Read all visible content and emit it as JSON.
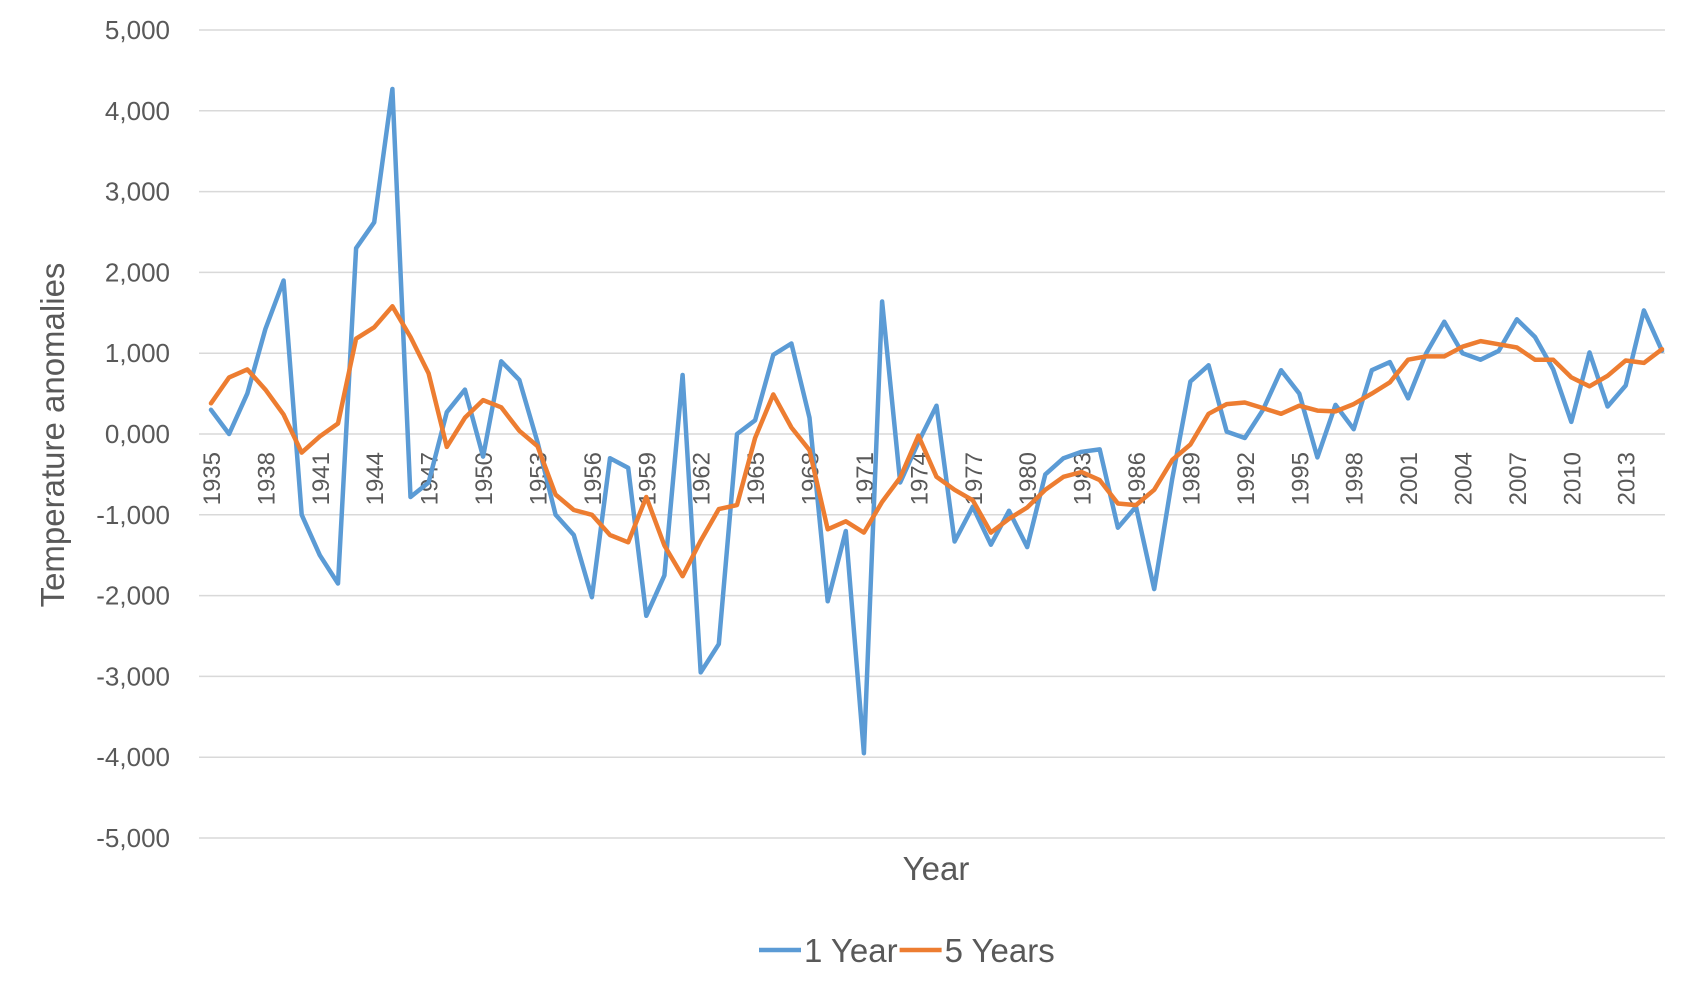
{
  "chart_data": {
    "type": "line",
    "title": "",
    "xlabel": "Year",
    "ylabel": "Temperature anomalies",
    "ylim": [
      -5000,
      5000
    ],
    "y_ticks": [
      5000,
      4000,
      3000,
      2000,
      1000,
      0,
      -1000,
      -2000,
      -3000,
      -4000,
      -5000
    ],
    "y_tick_labels": [
      "5,000",
      "4,000",
      "3,000",
      "2,000",
      "1,000",
      "0,000",
      "-1,000",
      "-2,000",
      "-3,000",
      "-4,000",
      "-5,000"
    ],
    "x_tick_labels": [
      "1935",
      "1938",
      "1941",
      "1944",
      "1947",
      "1950",
      "1953",
      "1956",
      "1959",
      "1962",
      "1965",
      "1968",
      "1971",
      "1974",
      "1977",
      "1980",
      "1983",
      "1986",
      "1989",
      "1992",
      "1995",
      "1998",
      "2001",
      "2004",
      "2007",
      "2010",
      "2013"
    ],
    "x_axis_position": 0,
    "grid": true,
    "legend_position": "bottom",
    "x": [
      1935,
      1936,
      1937,
      1938,
      1939,
      1940,
      1941,
      1942,
      1943,
      1944,
      1945,
      1946,
      1947,
      1948,
      1949,
      1950,
      1951,
      1952,
      1953,
      1954,
      1955,
      1956,
      1957,
      1958,
      1959,
      1960,
      1961,
      1962,
      1963,
      1964,
      1965,
      1966,
      1967,
      1968,
      1969,
      1970,
      1971,
      1972,
      1973,
      1974,
      1975,
      1976,
      1977,
      1978,
      1979,
      1980,
      1981,
      1982,
      1983,
      1984,
      1985,
      1986,
      1987,
      1988,
      1989,
      1990,
      1991,
      1992,
      1993,
      1994,
      1995,
      1996,
      1997,
      1998,
      1999,
      2000,
      2001,
      2002,
      2003,
      2004,
      2005,
      2006,
      2007,
      2008,
      2009,
      2010,
      2011,
      2012,
      2013,
      2014,
      2015
    ],
    "series": [
      {
        "name": "1 Year",
        "color": "#5b9bd5",
        "values": [
          300,
          0,
          500,
          1300,
          1900,
          -1000,
          -1500,
          -1850,
          2300,
          2620,
          4270,
          -780,
          -600,
          270,
          550,
          -280,
          900,
          670,
          -100,
          -1000,
          -1250,
          -2020,
          -300,
          -420,
          -2250,
          -1750,
          730,
          -2950,
          -2600,
          0,
          170,
          980,
          1120,
          200,
          -2070,
          -1200,
          -3950,
          1640,
          -600,
          -100,
          350,
          -1330,
          -900,
          -1370,
          -950,
          -1400,
          -500,
          -300,
          -220,
          -190,
          -1160,
          -900,
          -1920,
          -550,
          650,
          850,
          30,
          -50,
          300,
          790,
          500,
          -290,
          360,
          60,
          790,
          890,
          440,
          1000,
          1390,
          1000,
          920,
          1030,
          1420,
          1200,
          800,
          150,
          1010,
          340,
          600,
          1530,
          1030
        ]
      },
      {
        "name": "5 Years",
        "color": "#ed7d31",
        "values": [
          380,
          700,
          800,
          550,
          240,
          -230,
          -30,
          130,
          1180,
          1320,
          1580,
          1200,
          750,
          -160,
          200,
          420,
          330,
          40,
          -150,
          -750,
          -940,
          -1000,
          -1250,
          -1340,
          -780,
          -1380,
          -1760,
          -1320,
          -930,
          -880,
          -50,
          490,
          80,
          -200,
          -1180,
          -1080,
          -1220,
          -840,
          -540,
          -20,
          -530,
          -690,
          -820,
          -1220,
          -1050,
          -910,
          -690,
          -530,
          -470,
          -570,
          -860,
          -880,
          -690,
          -320,
          -130,
          250,
          370,
          390,
          320,
          250,
          350,
          290,
          280,
          370,
          500,
          640,
          920,
          960,
          960,
          1080,
          1150,
          1110,
          1070,
          920,
          920,
          700,
          590,
          720,
          910,
          880,
          1050
        ]
      }
    ]
  }
}
